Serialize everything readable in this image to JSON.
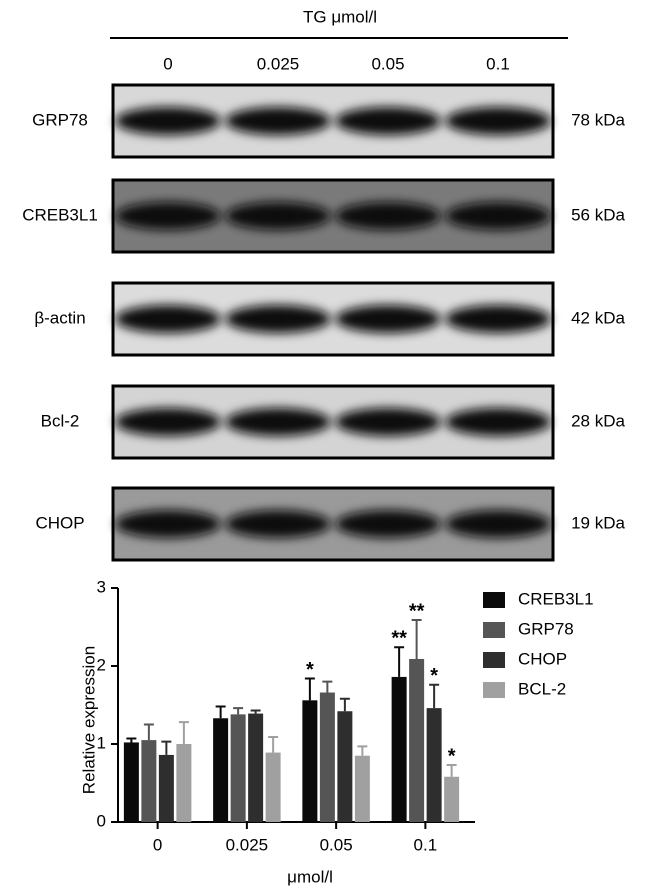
{
  "blot": {
    "title": "TG μmol/l",
    "lanes": [
      "0",
      "0.025",
      "0.05",
      "0.1"
    ],
    "rows": [
      {
        "protein": "GRP78",
        "size": "78 kDa"
      },
      {
        "protein": "CREB3L1",
        "size": "56 kDa"
      },
      {
        "protein": "β-actin",
        "size": "42 kDa"
      },
      {
        "protein": "Bcl-2",
        "size": "28 kDa"
      },
      {
        "protein": "CHOP",
        "size": "19 kDa"
      }
    ]
  },
  "chart_data": {
    "type": "bar",
    "x_label": "μmol/l",
    "y_label": "Relative expression",
    "categories": [
      "0",
      "0.025",
      "0.05",
      "0.1"
    ],
    "ylim": [
      0,
      3
    ],
    "yticks": [
      0,
      1,
      2,
      3
    ],
    "series": [
      {
        "name": "CREB3L1",
        "color": "#0a0a0a",
        "values": [
          1.02,
          1.33,
          1.56,
          1.86
        ],
        "errors": [
          0.05,
          0.15,
          0.28,
          0.38
        ],
        "significance": [
          null,
          null,
          "*",
          "**"
        ]
      },
      {
        "name": "GRP78",
        "color": "#555555",
        "values": [
          1.05,
          1.38,
          1.66,
          2.09
        ],
        "errors": [
          0.2,
          0.08,
          0.14,
          0.5
        ],
        "significance": [
          null,
          null,
          null,
          "**"
        ]
      },
      {
        "name": "CHOP",
        "color": "#2e2e2e",
        "values": [
          0.86,
          1.39,
          1.42,
          1.46
        ],
        "errors": [
          0.17,
          0.04,
          0.16,
          0.3
        ],
        "significance": [
          null,
          null,
          null,
          "*"
        ]
      },
      {
        "name": "BCL-2",
        "color": "#a0a0a0",
        "values": [
          1.0,
          0.89,
          0.85,
          0.58
        ],
        "errors": [
          0.28,
          0.2,
          0.12,
          0.15
        ],
        "significance": [
          null,
          null,
          null,
          "*"
        ]
      }
    ]
  }
}
